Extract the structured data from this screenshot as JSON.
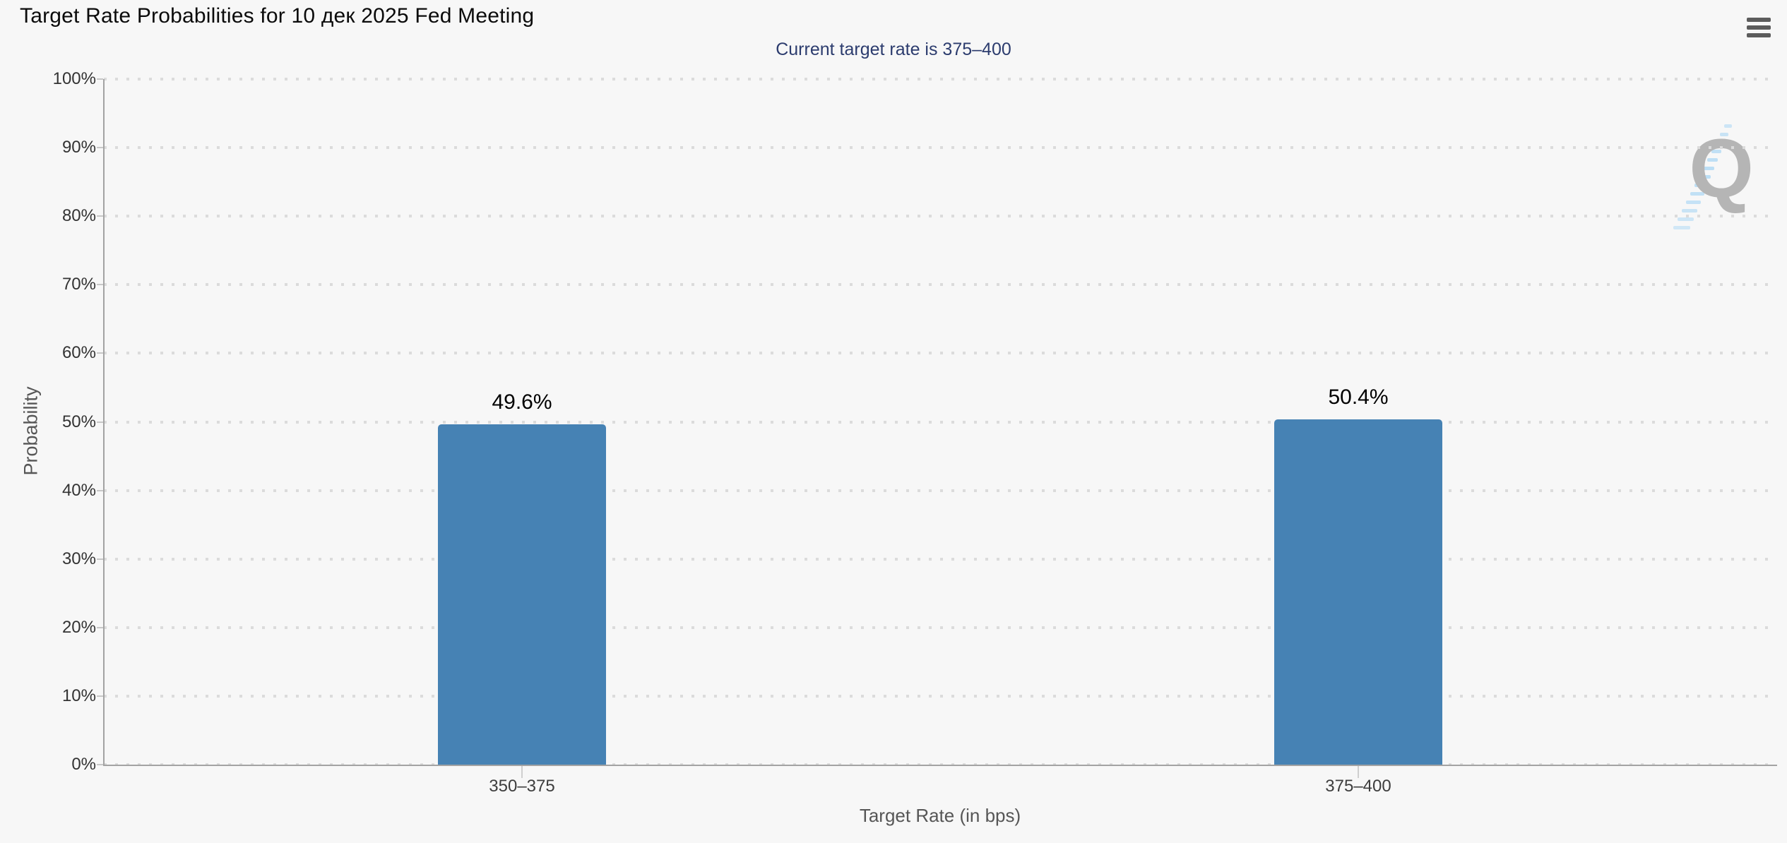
{
  "header": {
    "title": "Target Rate Probabilities for 10 дек 2025 Fed Meeting"
  },
  "toolbar": {
    "menu_icon": "hamburger-menu-icon"
  },
  "chart_data": {
    "type": "bar",
    "title": "Target Rate Probabilities for 10 дек 2025 Fed Meeting",
    "subtitle": "Current target rate is 375–400",
    "categories": [
      "350–375",
      "375–400"
    ],
    "values": [
      49.6,
      50.4
    ],
    "value_labels": [
      "49.6%",
      "50.4%"
    ],
    "xlabel": "Target Rate (in bps)",
    "ylabel": "Probability",
    "ylim": [
      0,
      100
    ],
    "ytick_step": 10,
    "ytick_labels": [
      "0%",
      "10%",
      "20%",
      "30%",
      "40%",
      "50%",
      "60%",
      "70%",
      "80%",
      "90%",
      "100%"
    ],
    "grid": "dotted-horizontal",
    "legend": "none",
    "bar_color": "#4682b4"
  },
  "colors": {
    "background": "#f7f7f7",
    "bar": "#4682b4",
    "subtitle": "#2c3c6e",
    "axis_line": "#a3a3a3",
    "gridline": "#dbdbdb",
    "tick_text": "#333333",
    "axis_title_text": "#565656"
  },
  "watermark": {
    "letter": "Q"
  }
}
